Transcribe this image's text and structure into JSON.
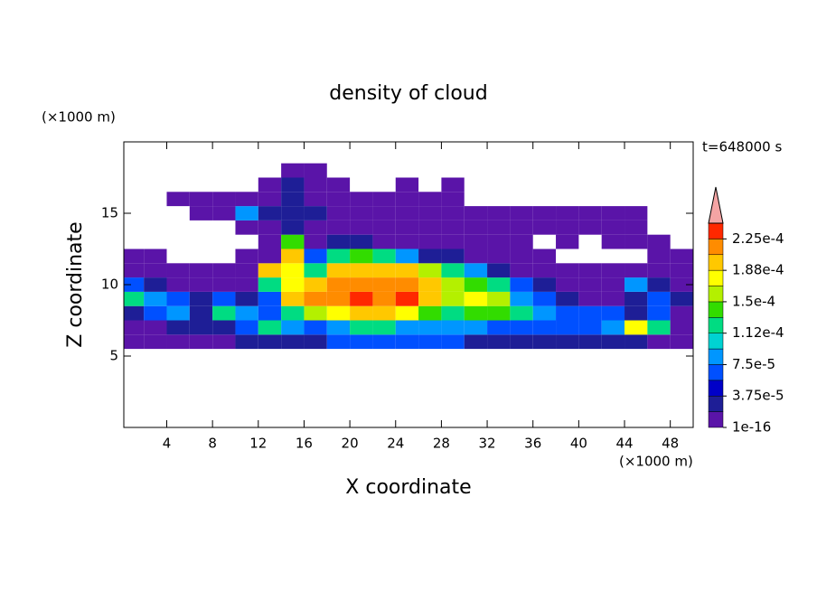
{
  "chart_data": {
    "type": "contour",
    "title": "density of cloud",
    "x_unit": "(×1000 m)",
    "y_unit": "(×1000 m)",
    "annotation": "t=648000 s",
    "xlabel": "X coordinate",
    "ylabel": "Z coordinate",
    "xlim": [
      0.25,
      50
    ],
    "ylim": [
      0,
      20
    ],
    "xticks": [
      4,
      8,
      12,
      16,
      20,
      24,
      28,
      32,
      36,
      40,
      44,
      48
    ],
    "yticks": [
      5,
      10,
      15
    ],
    "x": [
      1,
      3,
      5,
      7,
      9,
      11,
      13,
      15,
      17,
      19,
      21,
      23,
      25,
      27,
      29,
      31,
      33,
      35,
      37,
      39,
      41,
      43,
      45,
      47,
      49
    ],
    "z": [
      6,
      7,
      8,
      9,
      10,
      11,
      12,
      13,
      14,
      15,
      16,
      17,
      18
    ],
    "values": [
      [
        1e-05,
        1e-05,
        1e-05,
        1e-05,
        1e-05,
        3e-05,
        3e-05,
        3e-05,
        3e-05,
        6e-05,
        6e-05,
        6e-05,
        6e-05,
        6e-05,
        6e-05,
        3e-05,
        3e-05,
        3e-05,
        3e-05,
        3e-05,
        3e-05,
        3e-05,
        3e-05,
        1e-05,
        1e-05
      ],
      [
        1e-05,
        1e-05,
        3e-05,
        3e-05,
        3e-05,
        6e-05,
        0.00012,
        9e-05,
        6e-05,
        9e-05,
        0.00012,
        0.00012,
        9e-05,
        9e-05,
        9e-05,
        9e-05,
        6e-05,
        6e-05,
        6e-05,
        6e-05,
        6e-05,
        9e-05,
        0.00018,
        0.00012,
        1e-05
      ],
      [
        3e-05,
        6e-05,
        9e-05,
        3e-05,
        0.00012,
        9e-05,
        6e-05,
        0.00012,
        0.00016,
        0.00018,
        0.0002,
        0.0002,
        0.00018,
        0.00014,
        0.00012,
        0.00014,
        0.00014,
        0.00012,
        9e-05,
        6e-05,
        6e-05,
        6e-05,
        3e-05,
        6e-05,
        1e-05
      ],
      [
        0.00012,
        9e-05,
        6e-05,
        3e-05,
        6e-05,
        3e-05,
        6e-05,
        0.0002,
        0.00022,
        0.00022,
        0.000235,
        0.00022,
        0.000235,
        0.0002,
        0.00016,
        0.00018,
        0.00016,
        9e-05,
        6e-05,
        3e-05,
        1e-05,
        1e-05,
        3e-05,
        6e-05,
        3e-05
      ],
      [
        6e-05,
        3e-05,
        1e-05,
        1e-05,
        1e-05,
        1e-05,
        0.00012,
        0.00018,
        0.0002,
        0.00022,
        0.00022,
        0.00022,
        0.00022,
        0.0002,
        0.00016,
        0.00014,
        0.00012,
        6e-05,
        3e-05,
        1e-05,
        1e-05,
        1e-05,
        9e-05,
        3e-05,
        1e-05
      ],
      [
        1e-05,
        1e-05,
        1e-05,
        1e-05,
        1e-05,
        1e-05,
        0.0002,
        0.00018,
        0.00012,
        0.0002,
        0.0002,
        0.0002,
        0.0002,
        0.00016,
        0.00012,
        9e-05,
        3e-05,
        1e-05,
        1e-05,
        1e-05,
        1e-05,
        1e-05,
        1e-05,
        1e-05,
        1e-05
      ],
      [
        1e-05,
        1e-05,
        null,
        null,
        null,
        1e-05,
        1e-05,
        0.0002,
        6e-05,
        0.00012,
        0.00014,
        0.00012,
        9e-05,
        3e-05,
        3e-05,
        1e-05,
        1e-05,
        1e-05,
        1e-05,
        null,
        null,
        null,
        null,
        1e-05,
        1e-05
      ],
      [
        null,
        null,
        null,
        null,
        null,
        null,
        1e-05,
        0.00014,
        1e-05,
        3e-05,
        3e-05,
        1e-05,
        1e-05,
        1e-05,
        1e-05,
        1e-05,
        1e-05,
        1e-05,
        null,
        1e-05,
        null,
        1e-05,
        1e-05,
        1e-05,
        null
      ],
      [
        null,
        null,
        null,
        null,
        null,
        1e-05,
        1e-05,
        3e-05,
        1e-05,
        1e-05,
        1e-05,
        1e-05,
        1e-05,
        1e-05,
        1e-05,
        1e-05,
        1e-05,
        1e-05,
        1e-05,
        1e-05,
        1e-05,
        1e-05,
        1e-05,
        null,
        null
      ],
      [
        null,
        null,
        null,
        1e-05,
        1e-05,
        9e-05,
        3e-05,
        3e-05,
        3e-05,
        1e-05,
        1e-05,
        1e-05,
        1e-05,
        1e-05,
        1e-05,
        1e-05,
        1e-05,
        1e-05,
        1e-05,
        1e-05,
        1e-05,
        1e-05,
        1e-05,
        null,
        null
      ],
      [
        null,
        null,
        1e-05,
        1e-05,
        1e-05,
        1e-05,
        1e-05,
        3e-05,
        1e-05,
        1e-05,
        1e-05,
        1e-05,
        1e-05,
        1e-05,
        1e-05,
        null,
        null,
        null,
        null,
        null,
        null,
        null,
        null,
        null,
        null
      ],
      [
        null,
        null,
        null,
        null,
        null,
        null,
        1e-05,
        3e-05,
        1e-05,
        1e-05,
        null,
        null,
        1e-05,
        null,
        1e-05,
        null,
        null,
        null,
        null,
        null,
        null,
        null,
        null,
        null,
        null
      ],
      [
        null,
        null,
        null,
        null,
        null,
        null,
        null,
        1e-05,
        1e-05,
        null,
        null,
        null,
        null,
        null,
        null,
        null,
        null,
        null,
        null,
        null,
        null,
        null,
        null,
        null,
        null
      ]
    ],
    "levels": [
      1e-16,
      1.875e-05,
      3.75e-05,
      5.625e-05,
      7.5e-05,
      9.375e-05,
      0.0001125,
      0.00013125,
      0.00015,
      0.00016875,
      0.0001875,
      0.00020625,
      0.000225,
      0.00024375
    ],
    "colors": [
      "#5a14a8",
      "#1e1e96",
      "#0000c8",
      "#0050ff",
      "#0096ff",
      "#00d2d2",
      "#00dc82",
      "#32dc00",
      "#b4f000",
      "#ffff00",
      "#ffc800",
      "#ff8c00",
      "#ff2800"
    ],
    "extend_color": "#f4a4a4",
    "cbar_ticks": [
      {
        "value": 1e-16,
        "label": "1e-16"
      },
      {
        "value": 3.75e-05,
        "label": "3.75e-5"
      },
      {
        "value": 7.5e-05,
        "label": "7.5e-5"
      },
      {
        "value": 0.0001125,
        "label": "1.12e-4"
      },
      {
        "value": 0.00015,
        "label": "1.5e-4"
      },
      {
        "value": 0.0001875,
        "label": "1.88e-4"
      },
      {
        "value": 0.000225,
        "label": "2.25e-4"
      }
    ]
  }
}
